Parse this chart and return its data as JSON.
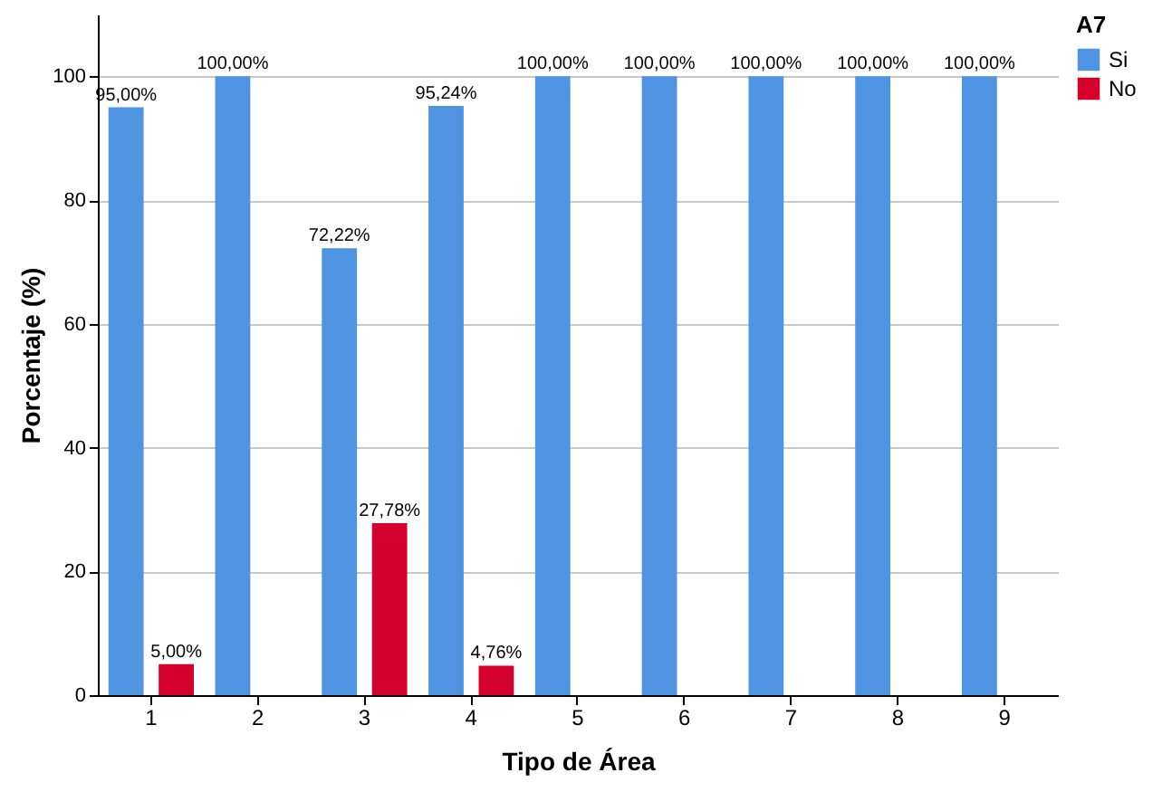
{
  "chart_data": {
    "type": "bar",
    "xlabel": "Tipo de Área",
    "ylabel": "Porcentaje (%)",
    "legend_title": "A7",
    "legend": "top right",
    "grid": "y",
    "categories": [
      "1",
      "2",
      "3",
      "4",
      "5",
      "6",
      "7",
      "8",
      "9"
    ],
    "ylim": [
      0,
      110
    ],
    "yticks": [
      0,
      20,
      40,
      60,
      80,
      100
    ],
    "series": [
      {
        "name": "Si",
        "color": "#4f94e3",
        "values": [
          95,
          100,
          72.22,
          95.24,
          100,
          100,
          100,
          100,
          100
        ],
        "value_labels": [
          "95,00%",
          "100,00%",
          "72,22%",
          "95,24%",
          "100,00%",
          "100,00%",
          "100,00%",
          "100,00%",
          "100,00%"
        ]
      },
      {
        "name": "No",
        "color": "#d5002b",
        "values": [
          5,
          null,
          27.78,
          4.76,
          null,
          null,
          null,
          null,
          null
        ],
        "value_labels": [
          "5,00%",
          null,
          "27,78%",
          "4,76%",
          null,
          null,
          null,
          null,
          null
        ]
      }
    ]
  }
}
